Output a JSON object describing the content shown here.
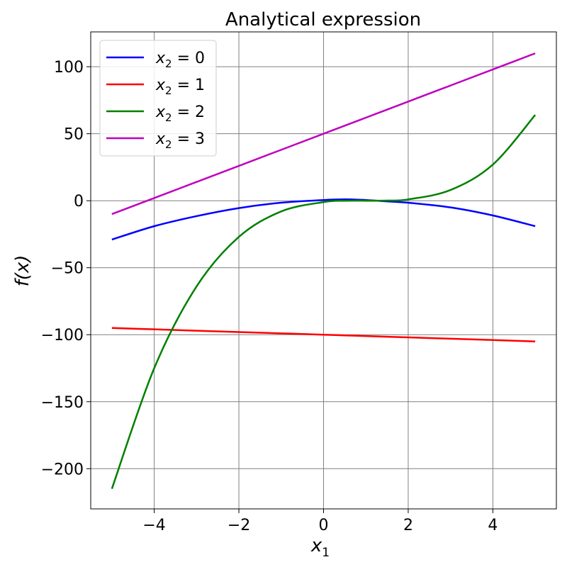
{
  "chart_data": {
    "type": "line",
    "title": "Analytical expression",
    "xlabel": "x",
    "xlabel_sub": "1",
    "ylabel": "f(x)",
    "xlim": [
      -5.5,
      5.5
    ],
    "ylim": [
      -230,
      126
    ],
    "xticks": [
      -4,
      -2,
      0,
      2,
      4
    ],
    "xtick_labels": [
      "−4",
      "−2",
      "0",
      "2",
      "4"
    ],
    "yticks": [
      -200,
      -150,
      -100,
      -50,
      0,
      50,
      100
    ],
    "ytick_labels": [
      "−200",
      "−150",
      "−100",
      "−50",
      "0",
      "50",
      "100"
    ],
    "grid": true,
    "legend_position": "top-left",
    "x": [
      -5,
      -4,
      -3,
      -2,
      -1,
      0,
      0.5,
      1,
      1.5,
      2,
      3,
      4,
      5
    ],
    "series": [
      {
        "name": "x₂ = 0",
        "legend_var": "x",
        "legend_sub": "2",
        "legend_val": "= 0",
        "color": "#0000ff",
        "values": [
          -29,
          -19,
          -11.5,
          -5.5,
          -1.5,
          0.5,
          1,
          0.5,
          -0.5,
          -1.5,
          -5,
          -11,
          -19
        ]
      },
      {
        "name": "x₂ = 1",
        "legend_var": "x",
        "legend_sub": "2",
        "legend_val": "= 1",
        "color": "#ff0000",
        "values": [
          -95,
          -96,
          -97,
          -98,
          -99,
          -100,
          -100.5,
          -101,
          -101.5,
          -102,
          -103,
          -104,
          -105
        ]
      },
      {
        "name": "x₂ = 2",
        "legend_var": "x",
        "legend_sub": "2",
        "legend_val": "= 2",
        "color": "#008000",
        "values": [
          -215,
          -125,
          -64,
          -27,
          -8,
          -1,
          0,
          0,
          0.1,
          1,
          8,
          27,
          64
        ]
      },
      {
        "name": "x₂ = 3",
        "legend_var": "x",
        "legend_sub": "2",
        "legend_val": "= 3",
        "color": "#bf00bf",
        "values": [
          -10,
          2,
          14,
          26,
          38,
          50,
          56,
          62,
          68,
          74,
          86,
          98,
          110
        ]
      }
    ]
  }
}
